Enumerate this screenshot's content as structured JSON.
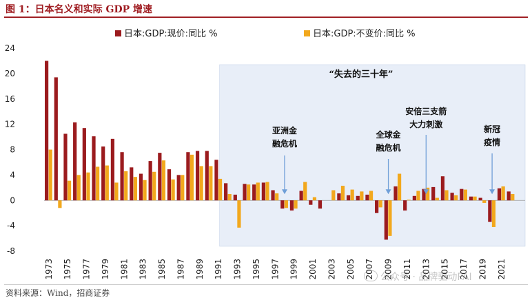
{
  "figure": {
    "title": "图 1：日本名义和实际 GDP 增速",
    "source": "资料来源：Wind，招商证券",
    "watermark": "公众号 · 品牌驱动PAI"
  },
  "colors": {
    "nominal": "#9b1b1e",
    "real": "#f2a81d",
    "shade": "#e8eef8",
    "shade_border": "#c9d6ea",
    "arrow": "#6f9fd8",
    "title_red": "#a01e23"
  },
  "chart_data": {
    "type": "bar",
    "title": "",
    "xlabel": "",
    "ylabel": "",
    "ylim": [
      -8,
      24
    ],
    "yticks": [
      24,
      20,
      16,
      12,
      8,
      4,
      0,
      -4,
      -8
    ],
    "grid": false,
    "legend_position": "top",
    "categories": [
      1973,
      1974,
      1975,
      1976,
      1977,
      1978,
      1979,
      1980,
      1981,
      1982,
      1983,
      1984,
      1985,
      1986,
      1987,
      1988,
      1989,
      1990,
      1991,
      1992,
      1993,
      1994,
      1995,
      1996,
      1997,
      1998,
      1999,
      2000,
      2001,
      2002,
      2003,
      2004,
      2005,
      2006,
      2007,
      2008,
      2009,
      2010,
      2011,
      2012,
      2013,
      2014,
      2015,
      2016,
      2017,
      2018,
      2019,
      2020,
      2021,
      2022,
      2023
    ],
    "tick_labels": [
      "1973",
      "1975",
      "1977",
      "1979",
      "1981",
      "1983",
      "1985",
      "1987",
      "1989",
      "1991",
      "1993",
      "1995",
      "1997",
      "1999",
      "2001",
      "2003",
      "2005",
      "2007",
      "2009",
      "2011",
      "2013",
      "2015",
      "2017",
      "2019",
      "2021"
    ],
    "series": [
      {
        "name": "日本:GDP:现价:同比 %",
        "color": "#9b1b1e",
        "values": [
          22.0,
          19.4,
          10.5,
          12.3,
          11.4,
          10.1,
          8.5,
          9.7,
          7.6,
          5.2,
          4.2,
          6.2,
          7.5,
          4.9,
          4.0,
          7.6,
          7.8,
          7.8,
          6.4,
          2.7,
          0.9,
          2.6,
          2.5,
          2.8,
          1.6,
          -1.3,
          -1.6,
          1.5,
          -0.7,
          -1.3,
          0.0,
          1.1,
          0.8,
          0.7,
          0.9,
          -2.0,
          -6.2,
          2.2,
          -1.6,
          0.7,
          1.8,
          2.1,
          3.8,
          1.2,
          1.8,
          0.6,
          0.4,
          -3.4,
          1.9,
          1.4,
          0.0
        ]
      },
      {
        "name": "日本:GDP:不变价:同比 %",
        "color": "#f2a81d",
        "values": [
          8.0,
          -1.2,
          3.1,
          4.0,
          4.4,
          5.3,
          5.5,
          2.8,
          4.6,
          3.7,
          3.2,
          4.5,
          6.3,
          3.3,
          4.0,
          7.2,
          5.4,
          5.4,
          3.4,
          1.0,
          -4.3,
          2.5,
          2.8,
          2.9,
          1.1,
          -1.2,
          -1.3,
          2.9,
          0.5,
          0.0,
          1.6,
          2.3,
          1.7,
          1.4,
          1.5,
          -1.1,
          -5.6,
          4.2,
          0.1,
          1.5,
          2.0,
          0.4,
          1.6,
          0.8,
          1.7,
          0.6,
          -0.4,
          -4.2,
          2.2,
          1.0,
          0.0
        ]
      }
    ],
    "annotations": [
      {
        "id": "lost-decades",
        "text": "“失去的三十年”"
      },
      {
        "id": "asian-crisis",
        "lines": [
          "亚洲金",
          "融危机"
        ],
        "year": 1998
      },
      {
        "id": "global-crisis",
        "lines": [
          "全球金",
          "融危机"
        ],
        "year": 2009
      },
      {
        "id": "abenomics",
        "lines": [
          "安倍三支箭",
          "大力刺激"
        ],
        "year": 2013
      },
      {
        "id": "covid",
        "lines": [
          "新冠",
          "疫情"
        ],
        "year": 2020
      }
    ],
    "shaded_period": {
      "label_ref": "lost-decades",
      "start_year": 1991,
      "end_year": 2023
    }
  }
}
